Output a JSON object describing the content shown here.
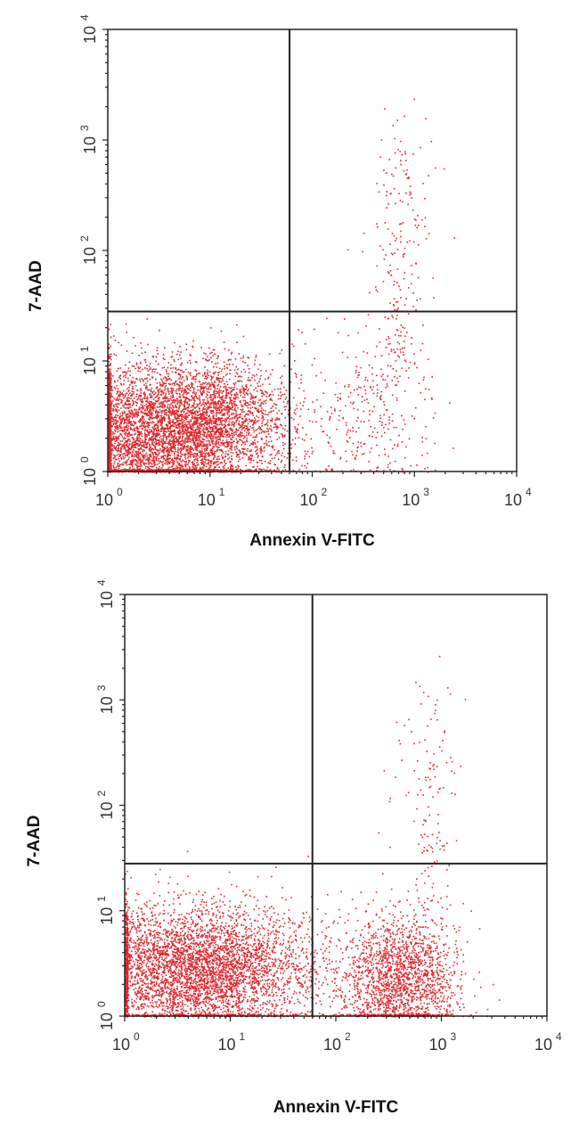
{
  "chart_data": [
    {
      "type": "scatter",
      "xlabel": "Annexin V-FITC",
      "ylabel": "7-AAD",
      "x_scale": "log",
      "y_scale": "log",
      "xlim": [
        1,
        10000
      ],
      "ylim": [
        1,
        10000
      ],
      "x_ticks": [
        1,
        10,
        100,
        1000,
        10000
      ],
      "y_ticks": [
        1,
        10,
        100,
        1000,
        10000
      ],
      "tick_labels": [
        "10",
        "10",
        "10",
        "10",
        "10"
      ],
      "tick_exponents": [
        "0",
        "1",
        "2",
        "3",
        "4"
      ],
      "quadrant_gate": {
        "x": 60,
        "y": 28
      },
      "point_color": "#e0262b",
      "grid": false,
      "populations": [
        {
          "x_center": 3.5,
          "y_center": 2.2,
          "x_spread": 0.55,
          "y_spread": 0.32,
          "count": 5200
        },
        {
          "x_center": 12,
          "y_center": 3.5,
          "x_spread": 0.35,
          "y_spread": 0.22,
          "count": 900
        },
        {
          "x_center": 350,
          "y_center": 3,
          "x_spread": 0.35,
          "y_spread": 0.35,
          "count": 280
        },
        {
          "x_center": 700,
          "y_center": 30,
          "x_spread": 0.12,
          "y_spread": 0.55,
          "count": 160
        },
        {
          "x_center": 800,
          "y_center": 350,
          "x_spread": 0.18,
          "y_spread": 0.35,
          "count": 70
        }
      ]
    },
    {
      "type": "scatter",
      "xlabel": "Annexin V-FITC",
      "ylabel": "7-AAD",
      "x_scale": "log",
      "y_scale": "log",
      "xlim": [
        1,
        10000
      ],
      "ylim": [
        1,
        10000
      ],
      "x_ticks": [
        1,
        10,
        100,
        1000,
        10000
      ],
      "y_ticks": [
        1,
        10,
        100,
        1000,
        10000
      ],
      "tick_labels": [
        "10",
        "10",
        "10",
        "10",
        "10"
      ],
      "tick_exponents": [
        "0",
        "1",
        "2",
        "3",
        "4"
      ],
      "quadrant_gate": {
        "x": 60,
        "y": 28
      },
      "point_color": "#e0262b",
      "grid": false,
      "populations": [
        {
          "x_center": 5,
          "y_center": 2.8,
          "x_spread": 0.55,
          "y_spread": 0.3,
          "count": 4600
        },
        {
          "x_center": 400,
          "y_center": 2.2,
          "x_spread": 0.28,
          "y_spread": 0.3,
          "count": 1900
        },
        {
          "x_center": 800,
          "y_center": 30,
          "x_spread": 0.1,
          "y_spread": 0.55,
          "count": 90
        },
        {
          "x_center": 700,
          "y_center": 350,
          "x_spread": 0.18,
          "y_spread": 0.35,
          "count": 60
        }
      ]
    }
  ]
}
